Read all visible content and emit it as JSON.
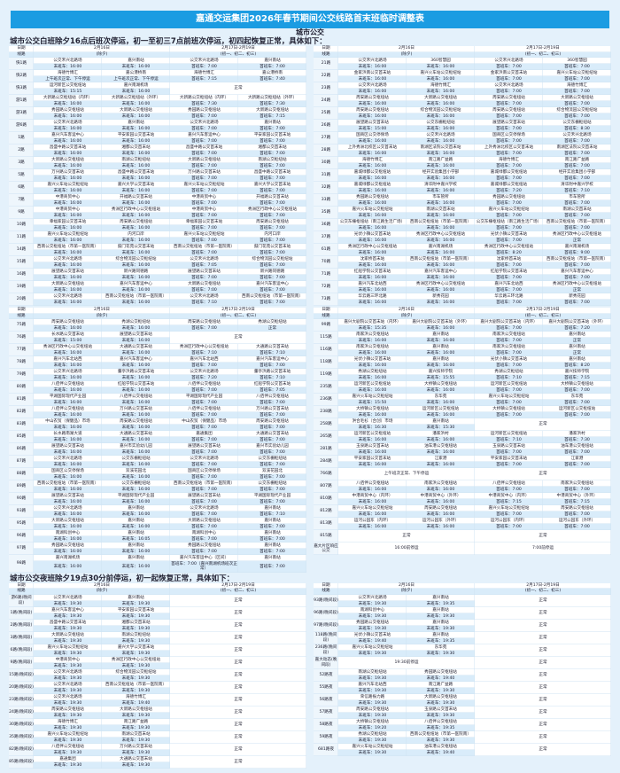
{
  "title": "嘉通交运集团2026年春节期间公交线路首末班临时调整表",
  "subtitle": "城市公交",
  "headings": {
    "day": "城市公交白班除夕16点后班次停运，初一至初三7点前班次停运，初四起恢复正常，具体如下：",
    "night": "城市公交夜班除夕19点30分前停运，初一起恢复正常，具体如下："
  },
  "header": {
    "date_label": "日期",
    "route_label": "线路",
    "d1": "2月16日",
    "d1_sub": "(除夕)",
    "d2": "2月17日-2月19日",
    "d2_sub": "(初一、初二、初三)"
  },
  "labels": {
    "last": "末班车：",
    "first": "首班车：",
    "normal": "正常"
  },
  "colors": {
    "title_bar": "#1b9ce2",
    "row_alt": "#d9ecfa",
    "background": "#e4f1fb"
  },
  "tables": [
    {
      "rows": [
        [
          "快1路",
          "公交禾兴北路场",
          "嘉兴南站",
          "16:00",
          "16:00",
          [
            "7:00",
            "7:00"
          ]
        ],
        [
          "快2路",
          "海德竹博汇",
          "嘉公港桥南",
          "上午班次正常、下午停运",
          "上午班次正常、下午停运",
          [
            "7:15",
            "7:40"
          ]
        ],
        [
          "快3路",
          "运河新区公交枢纽站",
          "嘉兴南湖机场",
          "15:15",
          "16:00",
          "正常"
        ],
        [
          "游1路",
          "大新路公交枢纽站（内环）",
          "大新路公交枢纽站（外环）",
          "16:00",
          "16:00",
          [
            "7:30",
            "7:30"
          ]
        ],
        [
          "游3路",
          "秀园路公交枢纽站",
          "大新路公交枢纽站",
          "16:00",
          "16:00",
          [
            "7:00",
            "7:15"
          ]
        ],
        [
          "游6路",
          "公交禾兴北路场",
          "嘉兴南站",
          "16:00",
          "16:00",
          [
            "7:00",
            "7:00"
          ]
        ],
        [
          "1路",
          "嘉兴汽车客运中心",
          "平安家园公交首末站",
          "16:00",
          "16:00",
          [
            "7:00",
            "7:00"
          ]
        ],
        [
          "2路",
          "昌盛中路公交首末站",
          "湘都公交首末站",
          "16:00",
          "16:00",
          [
            "7:00",
            "7:00"
          ]
        ],
        [
          "3路",
          "大新路公交枢纽站",
          "南湖公交枢纽站",
          "16:00",
          "16:00",
          [
            "7:00",
            "7:00"
          ]
        ],
        [
          "5路",
          "万兴路公交首末站",
          "昌盛中路公交首末站",
          "16:00",
          "16:00",
          [
            "7:00",
            "7:00"
          ]
        ],
        [
          "6路",
          "嘉兴火车站公交枢纽站",
          "嘉兴大学公交首末站",
          "16:00",
          "16:00",
          [
            "7:00",
            "7:00"
          ]
        ],
        [
          "7路",
          "中港商贸中心",
          "开福路公交首末站",
          "16:00",
          "16:00",
          [
            "7:00",
            "7:00"
          ]
        ],
        [
          "9路",
          "中港商贸中心",
          "秀洲区行政中心公交枢纽站",
          "16:00",
          "16:00",
          [
            "7:00",
            "7:00"
          ]
        ],
        [
          "10路",
          "幸福家园公交首末站",
          "周安路公交枢纽站",
          "16:00",
          "16:00",
          [
            "7:00",
            "7:00"
          ]
        ],
        [
          "11路",
          "嘉兴火车站公交枢纽站",
          "内河口岸",
          "16:00",
          "16:00",
          [
            "7:00",
            "7:00"
          ]
        ],
        [
          "14路",
          "西南公交枢纽站（市第一医院南）",
          "鼓门花苑公交首末站",
          "16:00",
          "16:00",
          [
            "7:00",
            "7:00"
          ]
        ],
        [
          "15路",
          "公交禾兴北路场",
          "综合物流园公交枢纽站",
          "16:00",
          "16:00",
          [
            "7:05",
            "7:00"
          ]
        ],
        [
          "16路",
          "展望路公交首末站",
          "新兴路同德路",
          "16:00",
          "16:00",
          [
            "7:00",
            "7:00"
          ]
        ],
        [
          "19路",
          "大新路公交枢纽站",
          "嘉兴汽车客运中心",
          "16:00",
          "16:00",
          [
            "7:00",
            "7:00"
          ]
        ],
        [
          "20路",
          "公交禾兴北路场",
          "西南公交枢纽站（市第一医院南）",
          "16:00",
          "16:00",
          [
            "7:10",
            "7:00"
          ]
        ]
      ]
    },
    {
      "rows": [
        [
          "21路",
          "公交禾兴北路场",
          "360智慧园",
          "16:00",
          "16:00",
          [
            "7:00",
            "7:00"
          ]
        ],
        [
          "22路",
          "金家浜南公交首末站",
          "嘉兴火车站公交枢纽站",
          "16:00",
          "16:00",
          [
            "7:00",
            "7:00"
          ]
        ],
        [
          "23路",
          "公交禾兴北路场",
          "海德竹博汇",
          "16:00",
          "16:00",
          [
            "7:00",
            "7:00"
          ]
        ],
        [
          "24路",
          "周安路公交枢纽站",
          "大新路公交枢纽站",
          "16:00",
          "16:00",
          [
            "7:00",
            "7:00"
          ]
        ],
        [
          "25路",
          "周安路公交枢纽站",
          "综合物流园公交枢纽站",
          "16:00",
          "16:00",
          [
            "7:00",
            "7:00"
          ]
        ],
        [
          "26路",
          "展望路公交首末站",
          "公交东栅枢纽站",
          "15:00",
          "16:00",
          [
            "7:00",
            "8:30"
          ]
        ],
        [
          "27路",
          "国商区公交停保场",
          "公交禾兴北路场",
          "16:00",
          "16:00",
          [
            "7:00",
            "7:00"
          ]
        ],
        [
          "28路",
          "上外秀洲北校区公交首末站",
          "南湖区法院公交首末站",
          "16:00",
          "16:00",
          [
            "7:00",
            "7:00"
          ]
        ],
        [
          "30路",
          "海德竹博汇",
          "南江路广益路",
          "16:00",
          "16:00",
          [
            "7:00",
            "7:00"
          ]
        ],
        [
          "31路",
          "嘉城绿都公交枢纽站",
          "经开实验集团小学部",
          "16:00",
          "16:00",
          [
            "7:00",
            "7:00"
          ]
        ],
        [
          "32路",
          "嘉城绿都公交枢纽站",
          "清华附中嘉兴学校",
          "16:00",
          "16:00",
          [
            "7:20",
            "7:10"
          ]
        ],
        [
          "33路",
          "秀园路公交枢纽站",
          "市车管所",
          "16:00",
          "16:00",
          [
            "7:00",
            "7:00"
          ]
        ],
        [
          "35路",
          "嘉兴火车站公交枢纽站",
          "南湖公交首末站",
          "16:00",
          "16:00",
          [
            "7:00",
            "7:00"
          ]
        ],
        [
          "36路",
          "公交东栅枢纽站（南江路生活广场）",
          "西南公交枢纽站（市第一医院南）",
          "16:00",
          "16:00",
          [
            "7:00",
            "7:00"
          ]
        ],
        [
          "37路",
          "光伏小镇公交首末站",
          "秀洲区行政中心公交枢纽站",
          "16:00",
          "16:00",
          [
            "7:00",
            "正常"
          ]
        ],
        [
          "61路",
          "秀洲区行政中心公交枢纽站",
          "嘉兴南湖机场",
          "16:00",
          "16:00",
          [
            "8:20",
            "9:00"
          ]
        ],
        [
          "70路",
          "沈家桥首末站",
          "西南公交枢纽站（市第一医院南）",
          "16:00",
          "16:00",
          [
            "7:00",
            "7:00"
          ]
        ],
        [
          "71路",
          "红船学院公交首末站",
          "嘉兴汽车客运中心",
          "16:00",
          "16:00",
          [
            "7:00",
            "7:00"
          ]
        ],
        [
          "72路",
          "嘉兴汽车北站西",
          "秀洲区行政中心公交枢纽站",
          "16:00",
          "16:00",
          [
            "7:00",
            "正常"
          ]
        ],
        [
          "73路",
          "华云路三环北路",
          "新秀花园",
          "16:00",
          "16:00",
          [
            "7:00",
            "7:00"
          ]
        ]
      ]
    },
    {
      "rows": [
        [
          "75路",
          "周安路公交枢纽站",
          "秀湖公交枢纽站",
          "16:00",
          "16:00",
          [
            "7:00",
            "正常"
          ]
        ],
        [
          "76路",
          "长水路公交首末站",
          "展望路公交首末站",
          "15:00",
          "16:00",
          "正常"
        ],
        [
          "77路",
          "秀洲区行政中心公交枢纽站",
          "大通路公交首末站",
          "16:00",
          "16:00",
          [
            "7:10",
            "7:10"
          ]
        ],
        [
          "78路",
          "嘉兴汽车北站西",
          "嘉兴汽车客运中心",
          "16:00",
          "16:00",
          [
            "7:00",
            "7:00"
          ]
        ],
        [
          "79路",
          "公交禾兴北路场",
          "董亭浜路公交首末站",
          "16:00",
          "16:00",
          [
            "7:20",
            "7:10"
          ]
        ],
        [
          "80路",
          "八佰伴公交枢纽站",
          "红船学院公交首末站",
          "16:00",
          "16:00",
          [
            "7:00",
            "7:05"
          ]
        ],
        [
          "81路",
          "平湖国际现代产业园",
          "八佰伴公交枢纽站",
          "16:00",
          "16:00",
          [
            "7:00",
            "7:00"
          ]
        ],
        [
          "82路",
          "八佰伴公交枢纽站",
          "万兴路公交首末站",
          "16:00",
          "16:00",
          [
            "7:00",
            "7:00"
          ]
        ],
        [
          "83路",
          "中山农贸（保健品）市场",
          "周安路公交枢纽站",
          "16:00",
          "16:00",
          [
            "7:00",
            "7:00"
          ]
        ],
        [
          "85路",
          "长水路南湖大道",
          "大通路公交首末站",
          "16:00",
          "16:00",
          [
            "嘉通集团",
            "大通路公交首末站",
            "7:00",
            "7:00"
          ]
        ],
        [
          "86路",
          "展望路公交首末站",
          "嘉兴市实验幼儿园",
          "16:00",
          "16:00",
          [
            "7:00",
            "7:00"
          ]
        ],
        [
          "87路",
          "公交禾兴北路场",
          "公交东栅枢纽站",
          "16:00",
          "16:00",
          [
            "7:00",
            "7:00"
          ]
        ],
        [
          "88路",
          "国商区公交停保场",
          "双溪花园北",
          "16:00",
          "16:00",
          [
            "7:00",
            "7:00"
          ]
        ],
        [
          "89路",
          "西南公交枢纽站（市第一医院南）",
          "公交东栅枢纽站",
          "16:00",
          "16:00",
          [
            "7:00",
            "7:00"
          ]
        ],
        [
          "90路",
          "展望路公交首末站",
          "平湖国际现代产业园",
          "16:00",
          "16:00",
          [
            "7:00",
            "7:00"
          ]
        ],
        [
          "93路",
          "公交禾兴北路场",
          "嘉兴南站",
          "16:00",
          "16:00",
          [
            "7:00",
            "7:10"
          ]
        ],
        [
          "95路",
          "大新路公交枢纽站",
          "嘉兴南站",
          "16:00",
          "16:00",
          [
            "7:00",
            "7:00"
          ]
        ],
        [
          "96路",
          "南湖科创中心",
          "嘉兴南站",
          "16:00",
          "16:05",
          [
            "7:00",
            "7:00"
          ]
        ],
        [
          "97路",
          "秀园路公交枢纽站",
          "嘉兴南站",
          "16:00",
          "16:00",
          [
            "7:00",
            "7:00"
          ]
        ],
        [
          "98路",
          "嘉兴南湖机场",
          "嘉兴南站",
          "16:00",
          "16:00",
          [
            "嘉兴汽车客运中心（区间）",
            "嘉兴南站",
            "7:00（嘉兴南湖机场班次正常）",
            "7:00"
          ]
        ]
      ]
    },
    {
      "rows": [
        [
          "99路",
          "嘉兴大剧院公交首末站（内环）",
          "嘉兴大剧院公交首末站（外环）",
          "15:35",
          "16:00",
          [
            "7:00",
            "7:20"
          ]
        ],
        [
          "115路",
          "南家浜公交枢纽站",
          "嘉兴南站",
          "16:00",
          "16:00",
          [
            "7:00",
            "正常"
          ]
        ],
        [
          "116路",
          "南家浜公交枢纽站",
          "嘉兴南站",
          "16:00",
          "16:00",
          [
            "7:00",
            "正常"
          ]
        ],
        [
          "118路",
          "光伏小镇公交首末站",
          "嘉兴南站",
          "16:00",
          "16:00",
          [
            "7:00",
            "8:20"
          ]
        ],
        [
          "119路",
          "秀湖公交枢纽站",
          "嘉兴技师学院",
          "16:00",
          "15:55",
          [
            "7:10",
            "7:15"
          ]
        ],
        [
          "235路",
          "运河新区公交枢纽站",
          "大桥镇公交枢纽站",
          "16:00",
          "16:00",
          [
            "7:00",
            "7:00"
          ]
        ],
        [
          "236路",
          "嘉兴火车站公交枢纽站",
          "东华苑",
          "15:50",
          "16:00",
          [
            "7:00",
            "7:00"
          ]
        ],
        [
          "238路",
          "大桥镇公交枢纽站",
          "运河新区公交枢纽站",
          "16:00",
          "16:00",
          [
            "7:00",
            "7:00"
          ]
        ],
        [
          "258路",
          "洪合毛衫（合创）市场",
          "嘉兴南站",
          "16:30",
          "15:30",
          "正常"
        ],
        [
          "265路",
          "运河新区公交枢纽站",
          "潘家浜村",
          "16:00",
          "16:00",
          [
            "7:10",
            "7:30"
          ]
        ],
        [
          "281路",
          "玉泉路公交首末站",
          "油车港公交枢纽站",
          "16:00",
          "16:00",
          [
            "7:00",
            "7:00"
          ]
        ],
        [
          "284路",
          "平安家园公交首末站",
          "江家港",
          "16:00",
          "16:00",
          [
            "7:00",
            "7:00"
          ]
        ],
        [
          "766路",
          "上午班次正常、下午停运",
          null,
          null,
          null,
          "正常"
        ],
        [
          "807路",
          "八佰伴公交枢纽站",
          "南家浜公交枢纽站",
          "16:00",
          "16:00",
          [
            "7:00",
            "7:00"
          ]
        ],
        [
          "810路",
          "中港商贸中心（内环）",
          "中港商贸中心（外环）",
          "16:00",
          "16:00",
          [
            "7:15",
            "7:15"
          ]
        ],
        [
          "812路",
          "嘉兴火车站公交枢纽站",
          "周安路公交枢纽站",
          "16:00",
          "16:00",
          [
            "7:00",
            "7:00"
          ]
        ],
        [
          "813路",
          "运河公园东（内环）",
          "运河公园东（外环）",
          "16:00",
          "16:00",
          [
            "7:00",
            "7:00"
          ]
        ],
        [
          "815路",
          "正常",
          null,
          null,
          null,
          "正常"
        ],
        [
          "嘉大片区响应公交",
          "16:00前停运",
          null,
          null,
          null,
          "7:00前停运"
        ]
      ]
    },
    {
      "rows": [
        [
          "游6路(晚间段)",
          "公交禾兴北路场",
          "嘉兴南站",
          "19:30",
          "19:30",
          "正常"
        ],
        [
          "1路(晚间段)",
          "嘉兴汽车客运中心",
          "平安家园公交首末站",
          "19:30",
          "19:30",
          "正常"
        ],
        [
          "2路(晚间段)",
          "昌盛中路公交首末站",
          "湘都公交首末站",
          "19:30",
          "19:30",
          "正常"
        ],
        [
          "3路(晚间段)",
          "大新路公交枢纽站",
          "南湖公交枢纽站",
          "19:30",
          "19:30",
          "正常"
        ],
        [
          "6路(晚间段)",
          "嘉兴火车站公交枢纽站",
          "嘉兴大学公交首末站",
          "19:30",
          "19:30",
          "正常"
        ],
        [
          "9路(晚间段)",
          "中港商贸中心",
          "秀洲区行政中心公交枢纽站",
          "19:30",
          "19:30",
          "正常"
        ],
        [
          "15路(晚间段)",
          "公交禾兴北路场",
          "综合物流园公交枢纽站",
          "19:30",
          "19:30",
          "正常"
        ],
        [
          "20路(晚间段)",
          "公交禾兴北路场",
          "西南公交枢纽站（市第一医院南）",
          "19:30",
          "19:30",
          "正常"
        ],
        [
          "23路(晚间段)",
          "公交禾兴北路场",
          "海德竹博汇",
          "19:30",
          "19:40",
          "正常"
        ],
        [
          "24路(晚间段)",
          "周安路公交枢纽站",
          "大新路公交枢纽站",
          "19:30",
          "19:30",
          "正常"
        ],
        [
          "30路(晚间段)",
          "海德竹博汇",
          "南江路广益路",
          "19:30",
          "19:30",
          "正常"
        ],
        [
          "35路(晚间段)",
          "嘉兴火车站公交枢纽站",
          "南湖公交首末站",
          "19:30",
          "19:30",
          "正常"
        ],
        [
          "82路(晚间段)",
          "八佰伴公交枢纽站",
          "万兴路公交首末站",
          "19:30",
          "19:30",
          "正常"
        ],
        [
          "85路(晚间段)",
          "嘉通集团",
          "大通路公交首末站",
          "19:30",
          "19:30",
          "正常"
        ]
      ]
    },
    {
      "rows": [
        [
          "93路(晚间段)",
          "公交禾兴北路场",
          "嘉兴南站",
          "19:30",
          "19:35",
          "正常"
        ],
        [
          "96路(晚间段)",
          "南湖科创中心",
          "嘉兴南站",
          "19:30",
          "19:30",
          "正常"
        ],
        [
          "97路(晚间段)",
          "秀园路公交枢纽站",
          "嘉兴南站",
          "19:30",
          "19:30",
          "正常"
        ],
        [
          "118路(晚间段)",
          "光伏小镇公交首末站",
          "嘉兴南站",
          "19:40",
          "19:35",
          "正常"
        ],
        [
          "236路(晚间段)",
          "嘉兴火车站公交枢纽站",
          "东华苑",
          "19:30",
          "19:30",
          "正常"
        ],
        [
          "嘉大动态(晚间段)",
          "19:30前停运",
          null,
          null,
          null,
          "正常"
        ],
        [
          "52路夜",
          "南湖公交枢纽站",
          "秀园路公交枢纽站",
          "19:30",
          "19:40",
          "正常"
        ],
        [
          "55路夜",
          "嘉兴汽车北站西",
          "南江路广益路",
          "19:30",
          "19:30",
          "正常"
        ],
        [
          "56路夜",
          "荣信路振力路",
          "大新路公交枢纽站",
          "19:30",
          "19:30",
          "正常"
        ],
        [
          "57路夜",
          "周安路公交枢纽站",
          "玉泉路公交首末站",
          "19:30",
          "19:30",
          "正常"
        ],
        [
          "58路夜",
          "大桥镇公交枢纽站",
          "八佰伴公交枢纽站",
          "19:20",
          "19:35",
          "正常"
        ],
        [
          "59路夜",
          "秀湖公交枢纽站",
          "西南公交枢纽站（市第一医院南）",
          "19:30",
          "19:30",
          "正常"
        ],
        [
          "681路夜",
          "嘉兴火车站公交枢纽站",
          "油车港公交枢纽站",
          "19:30",
          "19:40",
          "正常"
        ]
      ]
    }
  ]
}
